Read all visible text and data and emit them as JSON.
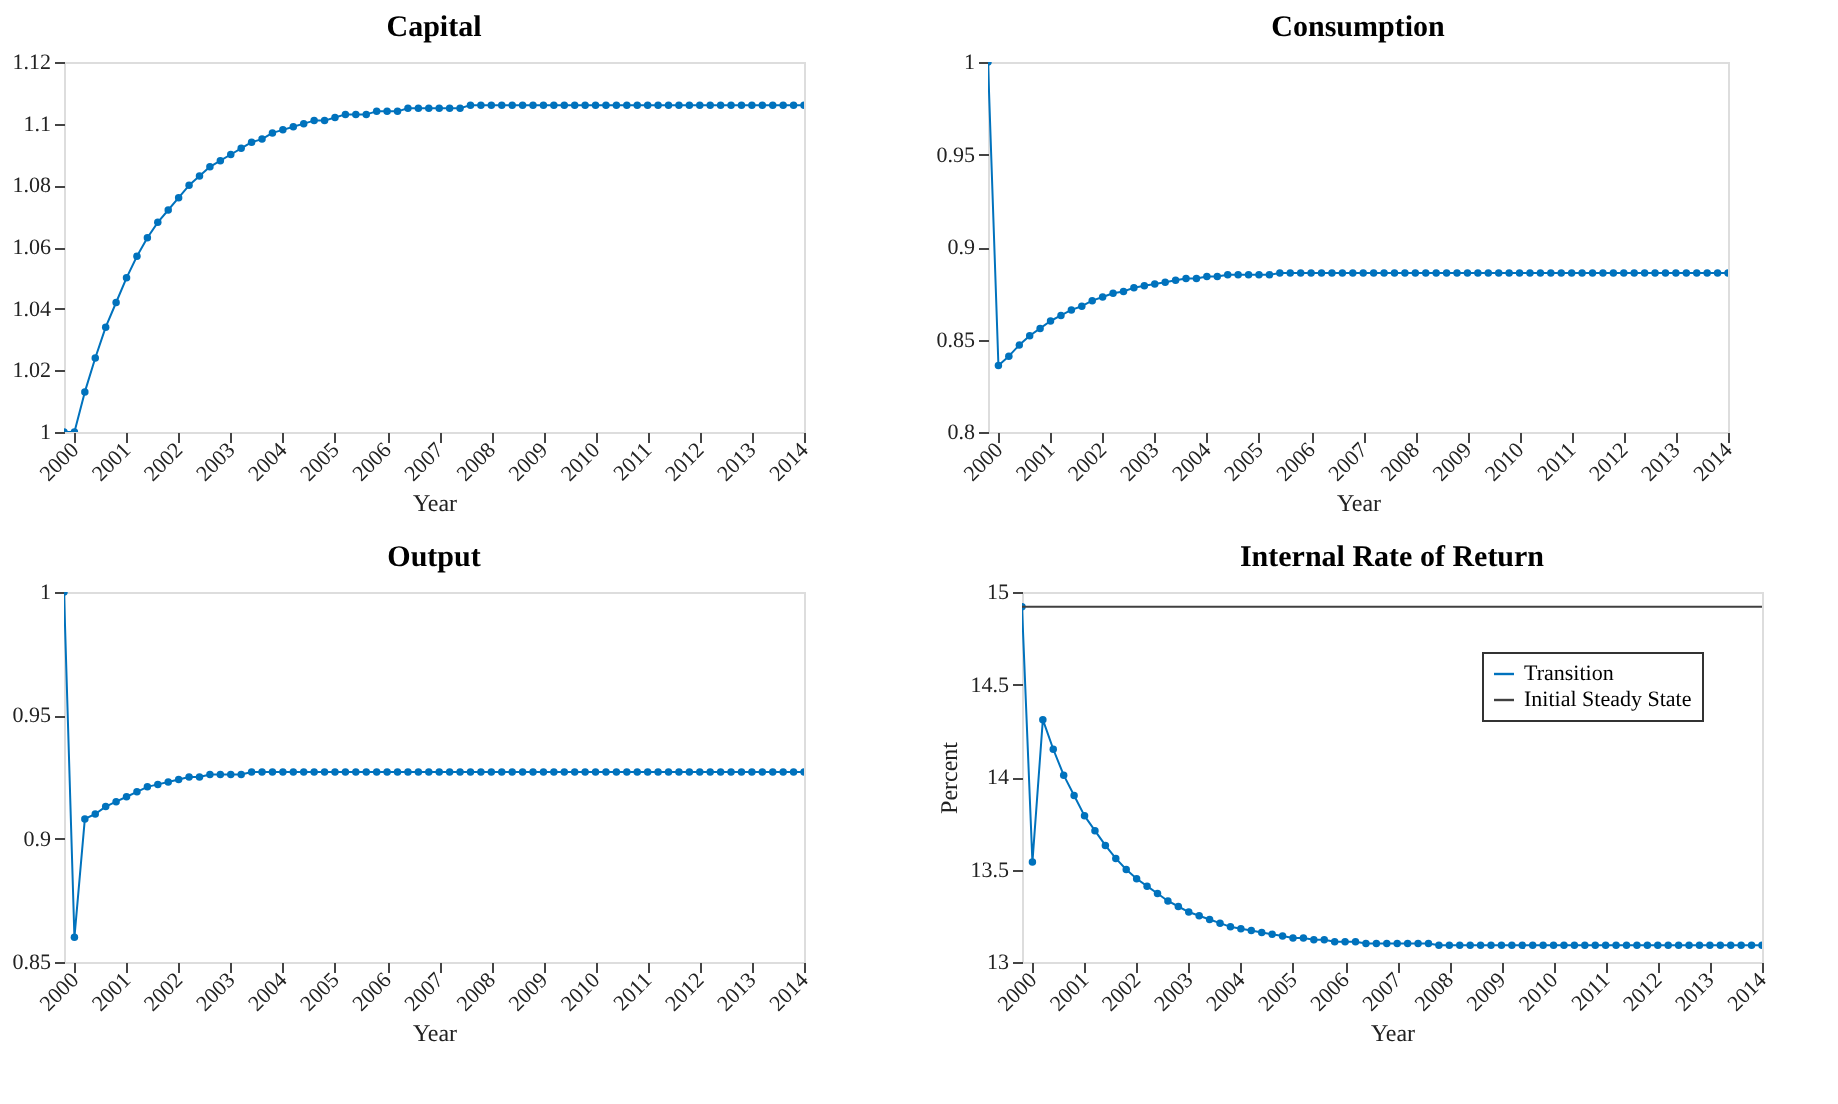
{
  "chart_data": [
    {
      "type": "line",
      "title": "Capital",
      "xlabel": "Year",
      "marker": "circle",
      "xlim": [
        1999.8,
        2014
      ],
      "xticks": [
        2000,
        2001,
        2002,
        2003,
        2004,
        2005,
        2006,
        2007,
        2008,
        2009,
        2010,
        2011,
        2012,
        2013,
        2014
      ],
      "ylim": [
        1,
        1.12
      ],
      "yticks": [
        1,
        1.02,
        1.04,
        1.06,
        1.08,
        1.1,
        1.12
      ],
      "x": [
        1999.8,
        2000,
        2000.2,
        2000.4,
        2000.6,
        2000.8,
        2001,
        2001.2,
        2001.4,
        2001.6,
        2001.8,
        2002,
        2002.2,
        2002.4,
        2002.6,
        2002.8,
        2003,
        2003.2,
        2003.4,
        2003.6,
        2003.8,
        2004,
        2004.2,
        2004.4,
        2004.6,
        2004.8,
        2005,
        2005.2,
        2005.4,
        2005.6,
        2005.8,
        2006,
        2006.2,
        2006.4,
        2006.6,
        2006.8,
        2007,
        2007.2,
        2007.4,
        2007.6,
        2007.8,
        2008,
        2008.2,
        2008.4,
        2008.6,
        2008.8,
        2009,
        2009.2,
        2009.4,
        2009.6,
        2009.8,
        2010,
        2010.2,
        2010.4,
        2010.6,
        2010.8,
        2011,
        2011.2,
        2011.4,
        2011.6,
        2011.8,
        2012,
        2012.2,
        2012.4,
        2012.6,
        2012.8,
        2013,
        2013.2,
        2013.4,
        2013.6,
        2013.8,
        2014
      ],
      "series": [
        {
          "color": "#0072bd",
          "values": [
            1,
            1,
            1.013,
            1.024,
            1.034,
            1.042,
            1.05,
            1.057,
            1.063,
            1.068,
            1.072,
            1.076,
            1.08,
            1.083,
            1.086,
            1.088,
            1.09,
            1.092,
            1.094,
            1.095,
            1.097,
            1.098,
            1.099,
            1.1,
            1.101,
            1.101,
            1.102,
            1.103,
            1.103,
            1.103,
            1.104,
            1.104,
            1.104,
            1.105,
            1.105,
            1.105,
            1.105,
            1.105,
            1.105,
            1.106,
            1.106,
            1.106,
            1.106,
            1.106,
            1.106,
            1.106,
            1.106,
            1.106,
            1.106,
            1.106,
            1.106,
            1.106,
            1.106,
            1.106,
            1.106,
            1.106,
            1.106,
            1.106,
            1.106,
            1.106,
            1.106,
            1.106,
            1.106,
            1.106,
            1.106,
            1.106,
            1.106,
            1.106,
            1.106,
            1.106,
            1.106,
            1.106
          ]
        }
      ]
    },
    {
      "type": "line",
      "title": "Consumption",
      "xlabel": "Year",
      "marker": "circle",
      "xlim": [
        1999.8,
        2014
      ],
      "xticks": [
        2000,
        2001,
        2002,
        2003,
        2004,
        2005,
        2006,
        2007,
        2008,
        2009,
        2010,
        2011,
        2012,
        2013,
        2014
      ],
      "ylim": [
        0.8,
        1
      ],
      "yticks": [
        0.8,
        0.85,
        0.9,
        0.95,
        1
      ],
      "x": [
        1999.8,
        2000,
        2000.2,
        2000.4,
        2000.6,
        2000.8,
        2001,
        2001.2,
        2001.4,
        2001.6,
        2001.8,
        2002,
        2002.2,
        2002.4,
        2002.6,
        2002.8,
        2003,
        2003.2,
        2003.4,
        2003.6,
        2003.8,
        2004,
        2004.2,
        2004.4,
        2004.6,
        2004.8,
        2005,
        2005.2,
        2005.4,
        2005.6,
        2005.8,
        2006,
        2006.2,
        2006.4,
        2006.6,
        2006.8,
        2007,
        2007.2,
        2007.4,
        2007.6,
        2007.8,
        2008,
        2008.2,
        2008.4,
        2008.6,
        2008.8,
        2009,
        2009.2,
        2009.4,
        2009.6,
        2009.8,
        2010,
        2010.2,
        2010.4,
        2010.6,
        2010.8,
        2011,
        2011.2,
        2011.4,
        2011.6,
        2011.8,
        2012,
        2012.2,
        2012.4,
        2012.6,
        2012.8,
        2013,
        2013.2,
        2013.4,
        2013.6,
        2013.8,
        2014
      ],
      "series": [
        {
          "color": "#0072bd",
          "values": [
            1,
            0.836,
            0.841,
            0.847,
            0.852,
            0.856,
            0.86,
            0.863,
            0.866,
            0.868,
            0.871,
            0.873,
            0.875,
            0.876,
            0.878,
            0.879,
            0.88,
            0.881,
            0.882,
            0.883,
            0.883,
            0.884,
            0.884,
            0.885,
            0.885,
            0.885,
            0.885,
            0.885,
            0.886,
            0.886,
            0.886,
            0.886,
            0.886,
            0.886,
            0.886,
            0.886,
            0.886,
            0.886,
            0.886,
            0.886,
            0.886,
            0.886,
            0.886,
            0.886,
            0.886,
            0.886,
            0.886,
            0.886,
            0.886,
            0.886,
            0.886,
            0.886,
            0.886,
            0.886,
            0.886,
            0.886,
            0.886,
            0.886,
            0.886,
            0.886,
            0.886,
            0.886,
            0.886,
            0.886,
            0.886,
            0.886,
            0.886,
            0.886,
            0.886,
            0.886,
            0.886,
            0.886
          ]
        }
      ]
    },
    {
      "type": "line",
      "title": "Output",
      "xlabel": "Year",
      "marker": "circle",
      "xlim": [
        1999.8,
        2014
      ],
      "xticks": [
        2000,
        2001,
        2002,
        2003,
        2004,
        2005,
        2006,
        2007,
        2008,
        2009,
        2010,
        2011,
        2012,
        2013,
        2014
      ],
      "ylim": [
        0.85,
        1
      ],
      "yticks": [
        0.85,
        0.9,
        0.95,
        1
      ],
      "x": [
        1999.8,
        2000,
        2000.2,
        2000.4,
        2000.6,
        2000.8,
        2001,
        2001.2,
        2001.4,
        2001.6,
        2001.8,
        2002,
        2002.2,
        2002.4,
        2002.6,
        2002.8,
        2003,
        2003.2,
        2003.4,
        2003.6,
        2003.8,
        2004,
        2004.2,
        2004.4,
        2004.6,
        2004.8,
        2005,
        2005.2,
        2005.4,
        2005.6,
        2005.8,
        2006,
        2006.2,
        2006.4,
        2006.6,
        2006.8,
        2007,
        2007.2,
        2007.4,
        2007.6,
        2007.8,
        2008,
        2008.2,
        2008.4,
        2008.6,
        2008.8,
        2009,
        2009.2,
        2009.4,
        2009.6,
        2009.8,
        2010,
        2010.2,
        2010.4,
        2010.6,
        2010.8,
        2011,
        2011.2,
        2011.4,
        2011.6,
        2011.8,
        2012,
        2012.2,
        2012.4,
        2012.6,
        2012.8,
        2013,
        2013.2,
        2013.4,
        2013.6,
        2013.8,
        2014
      ],
      "series": [
        {
          "color": "#0072bd",
          "values": [
            1,
            0.86,
            0.908,
            0.91,
            0.913,
            0.915,
            0.917,
            0.919,
            0.921,
            0.922,
            0.923,
            0.924,
            0.925,
            0.925,
            0.926,
            0.926,
            0.926,
            0.926,
            0.927,
            0.927,
            0.927,
            0.927,
            0.927,
            0.927,
            0.927,
            0.927,
            0.927,
            0.927,
            0.927,
            0.927,
            0.927,
            0.927,
            0.927,
            0.927,
            0.927,
            0.927,
            0.927,
            0.927,
            0.927,
            0.927,
            0.927,
            0.927,
            0.927,
            0.927,
            0.927,
            0.927,
            0.927,
            0.927,
            0.927,
            0.927,
            0.927,
            0.927,
            0.927,
            0.927,
            0.927,
            0.927,
            0.927,
            0.927,
            0.927,
            0.927,
            0.927,
            0.927,
            0.927,
            0.927,
            0.927,
            0.927,
            0.927,
            0.927,
            0.927,
            0.927,
            0.927,
            0.927
          ]
        }
      ]
    },
    {
      "type": "line",
      "title": "Internal Rate of Return",
      "xlabel": "Year",
      "ylabel": "Percent",
      "legend": "top right",
      "xlim": [
        1999.8,
        2014
      ],
      "xticks": [
        2000,
        2001,
        2002,
        2003,
        2004,
        2005,
        2006,
        2007,
        2008,
        2009,
        2010,
        2011,
        2012,
        2013,
        2014
      ],
      "ylim": [
        13,
        15
      ],
      "yticks": [
        13,
        13.5,
        14,
        14.5,
        15
      ],
      "x": [
        1999.8,
        2000,
        2000.2,
        2000.4,
        2000.6,
        2000.8,
        2001,
        2001.2,
        2001.4,
        2001.6,
        2001.8,
        2002,
        2002.2,
        2002.4,
        2002.6,
        2002.8,
        2003,
        2003.2,
        2003.4,
        2003.6,
        2003.8,
        2004,
        2004.2,
        2004.4,
        2004.6,
        2004.8,
        2005,
        2005.2,
        2005.4,
        2005.6,
        2005.8,
        2006,
        2006.2,
        2006.4,
        2006.6,
        2006.8,
        2007,
        2007.2,
        2007.4,
        2007.6,
        2007.8,
        2008,
        2008.2,
        2008.4,
        2008.6,
        2008.8,
        2009,
        2009.2,
        2009.4,
        2009.6,
        2009.8,
        2010,
        2010.2,
        2010.4,
        2010.6,
        2010.8,
        2011,
        2011.2,
        2011.4,
        2011.6,
        2011.8,
        2012,
        2012.2,
        2012.4,
        2012.6,
        2012.8,
        2013,
        2013.2,
        2013.4,
        2013.6,
        2013.8,
        2014
      ],
      "series": [
        {
          "name": "Transition",
          "color": "#0072bd",
          "marker": "circle",
          "values": [
            14.92,
            13.54,
            14.31,
            14.15,
            14.01,
            13.9,
            13.79,
            13.71,
            13.63,
            13.56,
            13.5,
            13.45,
            13.41,
            13.37,
            13.33,
            13.3,
            13.27,
            13.25,
            13.23,
            13.21,
            13.19,
            13.18,
            13.17,
            13.16,
            13.15,
            13.14,
            13.13,
            13.13,
            13.12,
            13.12,
            13.11,
            13.11,
            13.11,
            13.1,
            13.1,
            13.1,
            13.1,
            13.1,
            13.1,
            13.1,
            13.09,
            13.09,
            13.09,
            13.09,
            13.09,
            13.09,
            13.09,
            13.09,
            13.09,
            13.09,
            13.09,
            13.09,
            13.09,
            13.09,
            13.09,
            13.09,
            13.09,
            13.09,
            13.09,
            13.09,
            13.09,
            13.09,
            13.09,
            13.09,
            13.09,
            13.09,
            13.09,
            13.09,
            13.09,
            13.09,
            13.09,
            13.09
          ]
        },
        {
          "name": "Initial Steady State",
          "color": "#404040",
          "x": [
            1999.8,
            2014
          ],
          "values": [
            14.92,
            14.92
          ]
        }
      ]
    }
  ]
}
